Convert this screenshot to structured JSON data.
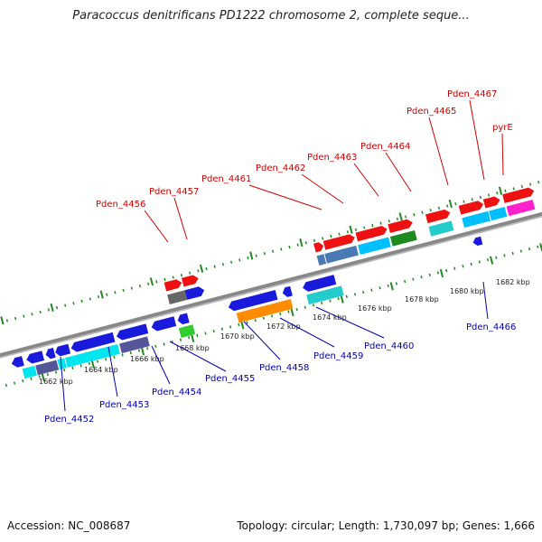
{
  "title": "Paracoccus denitrificans PD1222 chromosome 2, complete seque...",
  "footer": {
    "accession": "Accession: NC_008687",
    "topology": "Topology: circular; Length: 1,730,097 bp; Genes: 1,666"
  },
  "colors": {
    "top_labels": "#cc0000",
    "bottom_labels": "#0000aa",
    "backbone": "#888888",
    "ticks": "#228822"
  },
  "kbp_ticks": [
    "1662 kbp",
    "1664 kbp",
    "1666 kbp",
    "1668 kbp",
    "1670 kbp",
    "1672 kbp",
    "1674 kbp",
    "1676 kbp",
    "1678 kbp",
    "1680 kbp",
    "1682 kbp"
  ],
  "top_labels": [
    "Pden_4456",
    "Pden_4457",
    "Pden_4461",
    "Pden_4462",
    "Pden_4463",
    "Pden_4464",
    "Pden_4465",
    "Pden_4467",
    "pyrE"
  ],
  "bottom_labels": [
    "Pden_4452",
    "Pden_4453",
    "Pden_4454",
    "Pden_4455",
    "Pden_4458",
    "Pden_4459",
    "Pden_4460",
    "Pden_4466"
  ]
}
